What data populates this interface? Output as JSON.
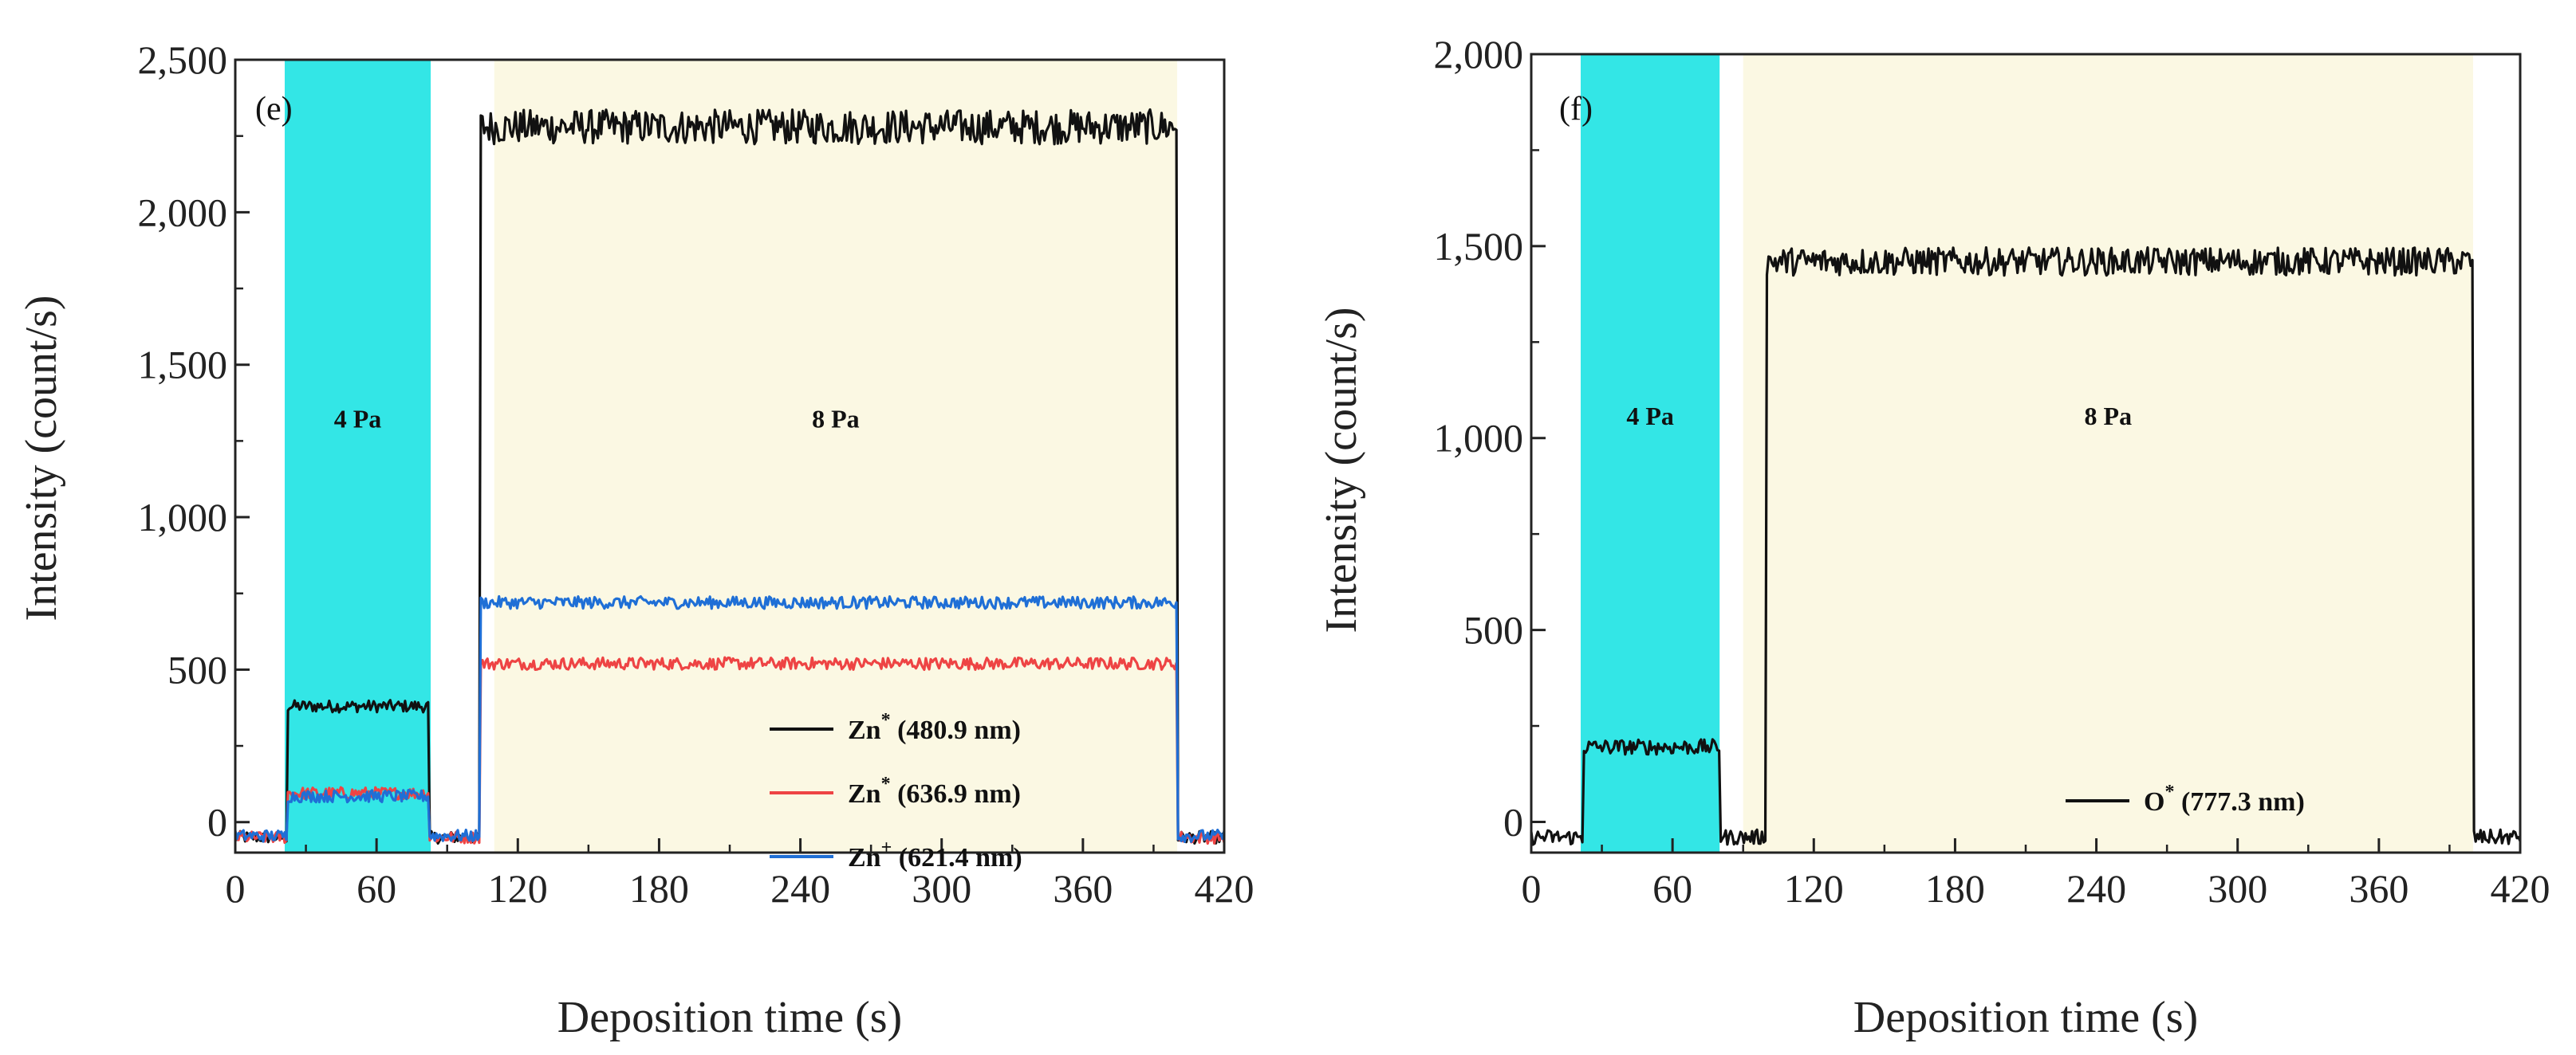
{
  "chart_data": [
    {
      "type": "line",
      "panel_label": "(e)",
      "xlabel": "Deposition time (s)",
      "ylabel": "Intensity (count/s)",
      "xlim": [
        0,
        420
      ],
      "ylim": [
        -100,
        2500
      ],
      "xticks": [
        0,
        60,
        120,
        180,
        240,
        300,
        360,
        420
      ],
      "xtick_labels": [
        "0",
        "60",
        "120",
        "180",
        "240",
        "300",
        "360",
        "420"
      ],
      "yticks": [
        0,
        500,
        1000,
        1500,
        2000,
        2500
      ],
      "ytick_labels": [
        "0",
        "500",
        "1,000",
        "1,500",
        "2,000",
        "2,500"
      ],
      "regions": [
        {
          "label": "4 Pa",
          "x_start": 21,
          "x_end": 83,
          "color": "#33e6e6"
        },
        {
          "label": "8 Pa",
          "x_start": 110,
          "x_end": 400,
          "color": "#fbf8e3"
        }
      ],
      "series": [
        {
          "name": "Zn* (480.9 nm)",
          "legend_species": "Zn",
          "legend_sup": "*",
          "legend_wavelength": " (480.9 nm)",
          "color": "#111111",
          "baseline": -50,
          "low_start": 22,
          "low_end": 82,
          "low_level": 380,
          "high_start": 104,
          "high_end": 400,
          "high_level": 2280
        },
        {
          "name": "Zn* (636.9 nm)",
          "legend_species": "Zn",
          "legend_sup": "*",
          "legend_wavelength": " (636.9 nm)",
          "color": "#ee4444",
          "baseline": -50,
          "low_start": 22,
          "low_end": 82,
          "low_level": 95,
          "high_start": 104,
          "high_end": 400,
          "high_level": 520
        },
        {
          "name": "Zn+ (621.4 nm)",
          "legend_species": "Zn",
          "legend_sup": "+",
          "legend_wavelength": " (621.4 nm)",
          "color": "#1f6fd6",
          "baseline": -45,
          "low_start": 22,
          "low_end": 82,
          "low_level": 85,
          "high_start": 104,
          "high_end": 400,
          "high_level": 720
        }
      ]
    },
    {
      "type": "line",
      "panel_label": "(f)",
      "xlabel": "Deposition time (s)",
      "ylabel": "Intensity (count/s)",
      "xlim": [
        0,
        420
      ],
      "ylim": [
        -80,
        2000
      ],
      "xticks": [
        0,
        60,
        120,
        180,
        240,
        300,
        360,
        420
      ],
      "xtick_labels": [
        "0",
        "60",
        "120",
        "180",
        "240",
        "300",
        "360",
        "420"
      ],
      "yticks": [
        0,
        500,
        1000,
        1500,
        2000
      ],
      "ytick_labels": [
        "0",
        "500",
        "1,000",
        "1,500",
        "2,000"
      ],
      "regions": [
        {
          "label": "4 Pa",
          "x_start": 21,
          "x_end": 80,
          "color": "#33e6e6"
        },
        {
          "label": "8 Pa",
          "x_start": 90,
          "x_end": 400,
          "color": "#fbf8e3"
        }
      ],
      "series": [
        {
          "name": "O* (777.3 nm)",
          "legend_species": "O",
          "legend_sup": "*",
          "legend_wavelength": " (777.3 nm)",
          "color": "#111111",
          "baseline": -40,
          "low_start": 22,
          "low_end": 80,
          "low_level": 195,
          "high_start": 100,
          "high_end": 400,
          "high_level": 1460
        }
      ]
    }
  ]
}
